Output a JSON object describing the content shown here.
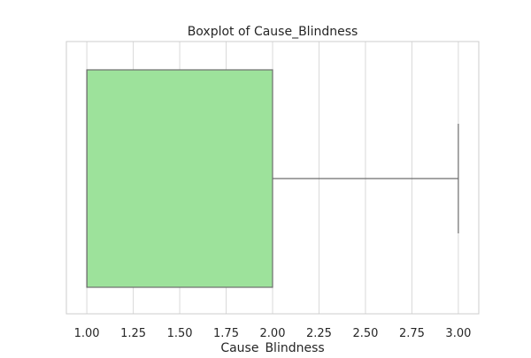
{
  "chart_data": {
    "type": "boxplot",
    "title": "Boxplot of Cause_Blindness",
    "xlabel": "Cause_Blindness",
    "ylabel": "",
    "orientation": "horizontal",
    "xlim": [
      0.89,
      3.11
    ],
    "ticks": [
      1.0,
      1.25,
      1.5,
      1.75,
      2.0,
      2.25,
      2.5,
      2.75,
      3.0
    ],
    "tick_labels": [
      "1.00",
      "1.25",
      "1.50",
      "1.75",
      "2.00",
      "2.25",
      "2.50",
      "2.75",
      "3.00"
    ],
    "grid": true,
    "box": {
      "whisker_low": 1.0,
      "q1": 1.0,
      "median": 1.0,
      "q3": 2.0,
      "whisker_high": 3.0,
      "outliers": []
    },
    "colors": {
      "box_fill": "#9de29b",
      "box_edge": "#6d6d6d",
      "grid": "#d9d9d9",
      "frame": "#cccccc"
    }
  }
}
